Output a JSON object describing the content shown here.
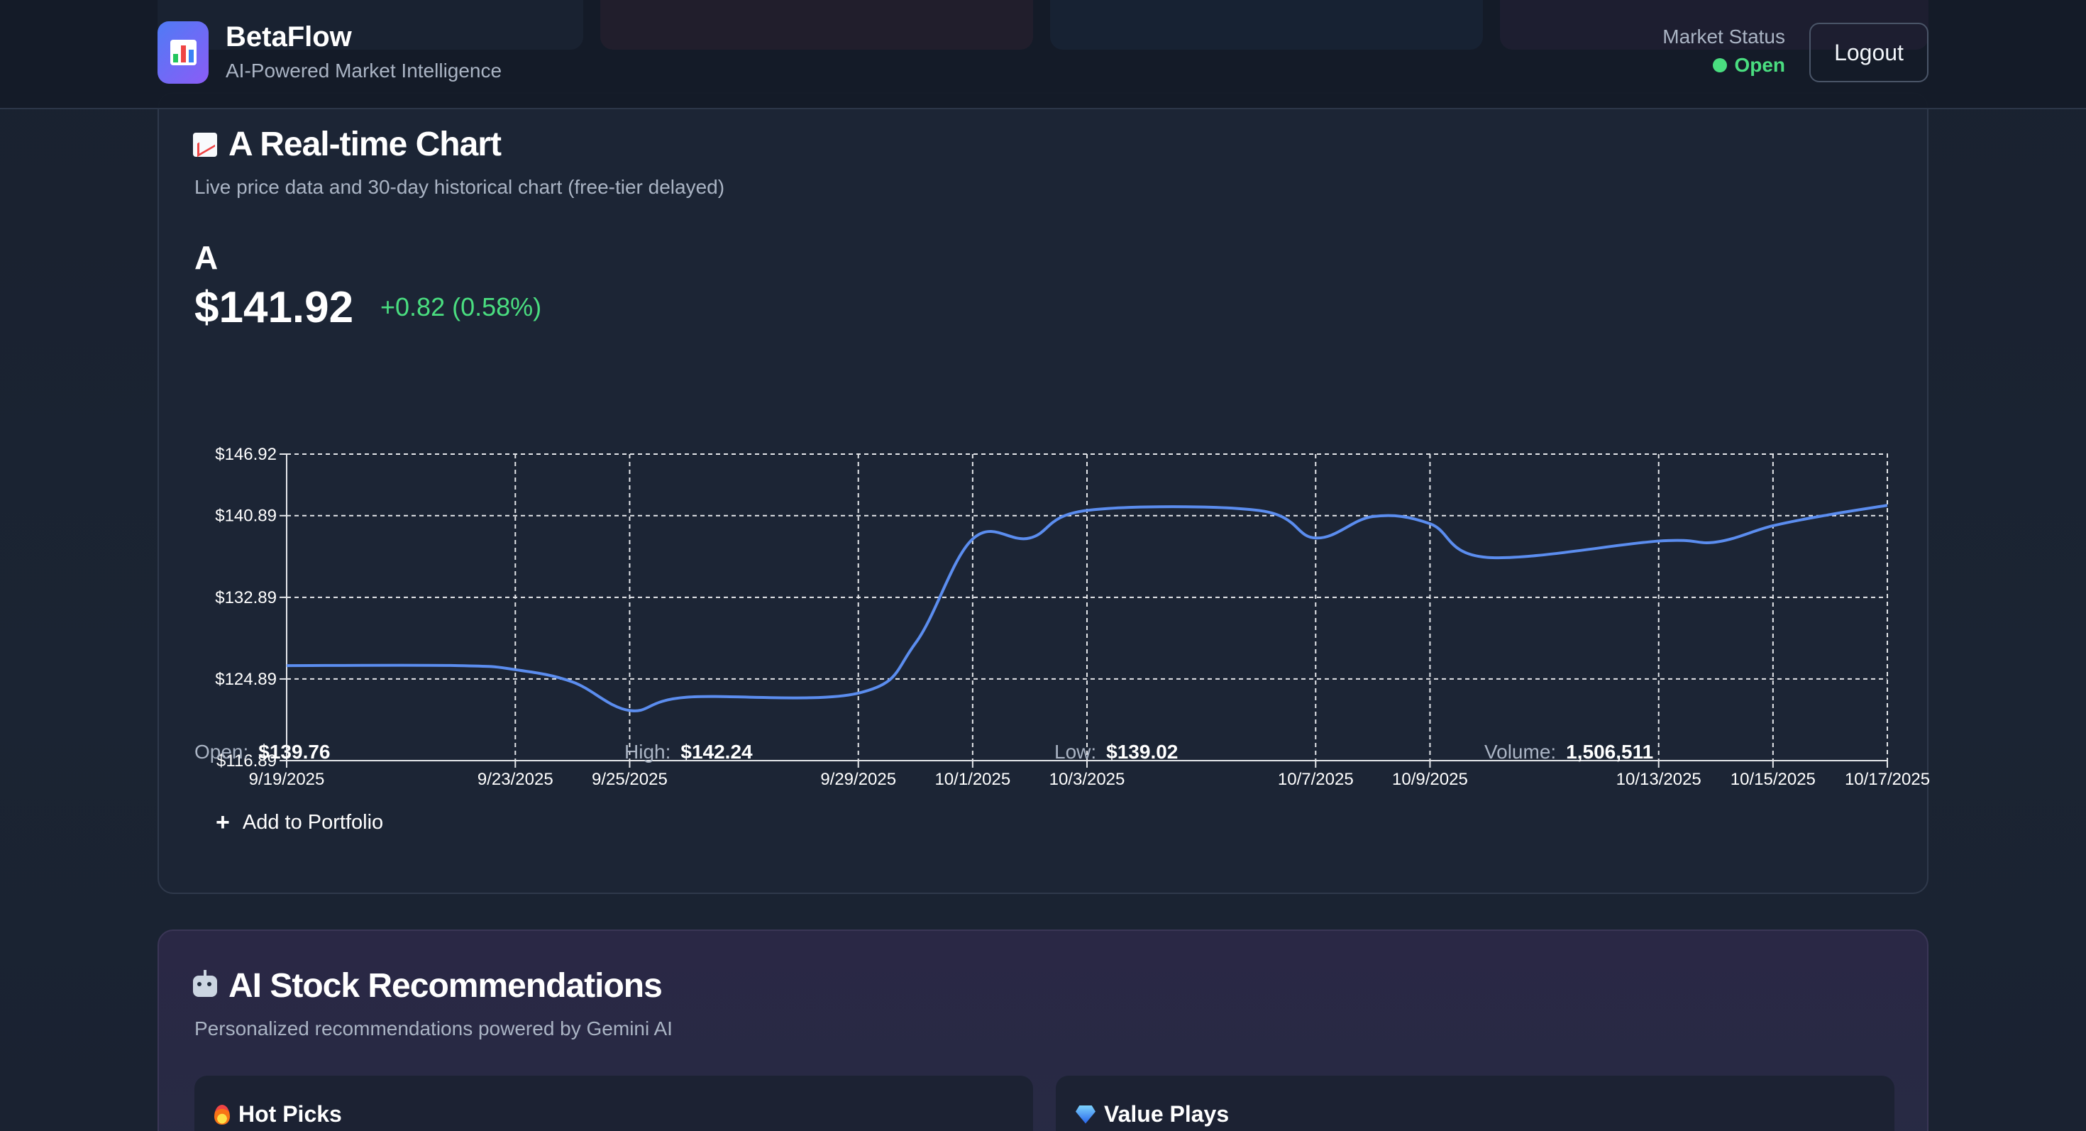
{
  "header": {
    "brand": "BetaFlow",
    "tagline": "AI-Powered Market Intelligence",
    "market_status_label": "Market Status",
    "market_status_value": "Open",
    "logout_label": "Logout",
    "logo_icon": "bar-chart-icon"
  },
  "chart_card": {
    "title": "A Real-time Chart",
    "subtitle": "Live price data and 30-day historical chart (free-tier delayed)",
    "ticker": "A",
    "price": "$141.92",
    "change": "+0.82 (0.58%)",
    "stats": [
      {
        "label": "Open:",
        "value": "$139.76"
      },
      {
        "label": "High:",
        "value": "$142.24"
      },
      {
        "label": "Low:",
        "value": "$139.02"
      },
      {
        "label": "Volume:",
        "value": "1,506,511"
      }
    ],
    "add_button_label": "Add to Portfolio",
    "add_button_icon": "+"
  },
  "recommendations": {
    "title": "AI Stock Recommendations",
    "subtitle": "Personalized recommendations powered by Gemini AI",
    "panels": [
      {
        "title": "Hot Picks",
        "icon": "fire-icon"
      },
      {
        "title": "Value Plays",
        "icon": "gem-icon"
      }
    ]
  },
  "colors": {
    "accent_line": "#5b8def",
    "positive": "#4ade80",
    "background": "#19212f"
  },
  "chart_data": {
    "type": "line",
    "title": "",
    "xlabel": "",
    "ylabel": "",
    "ylim": [
      116.89,
      146.92
    ],
    "y_ticks": [
      "$116.89",
      "$124.89",
      "$132.89",
      "$140.89",
      "$146.92"
    ],
    "y_tick_values": [
      116.89,
      124.89,
      132.89,
      140.89,
      146.92
    ],
    "x_ticks": [
      "9/19/2025",
      "9/23/2025",
      "9/25/2025",
      "9/29/2025",
      "10/1/2025",
      "10/3/2025",
      "10/7/2025",
      "10/9/2025",
      "10/13/2025",
      "10/15/2025",
      "10/17/2025"
    ],
    "grid": true,
    "series": [
      {
        "x": [
          "9/19/2025",
          "9/22/2025",
          "9/23/2025",
          "9/24/2025",
          "9/25/2025",
          "9/26/2025",
          "9/29/2025",
          "9/30/2025",
          "10/1/2025",
          "10/2/2025",
          "10/3/2025",
          "10/6/2025",
          "10/7/2025",
          "10/8/2025",
          "10/9/2025",
          "10/10/2025",
          "10/13/2025",
          "10/14/2025",
          "10/15/2025",
          "10/16/2025",
          "10/17/2025"
        ],
        "values": [
          126.2,
          126.2,
          125.8,
          124.6,
          121.8,
          123.1,
          123.5,
          128.4,
          138.6,
          138.7,
          141.4,
          141.4,
          138.7,
          140.8,
          140.1,
          136.8,
          138.4,
          138.3,
          139.9,
          141.0,
          141.9
        ]
      }
    ]
  }
}
